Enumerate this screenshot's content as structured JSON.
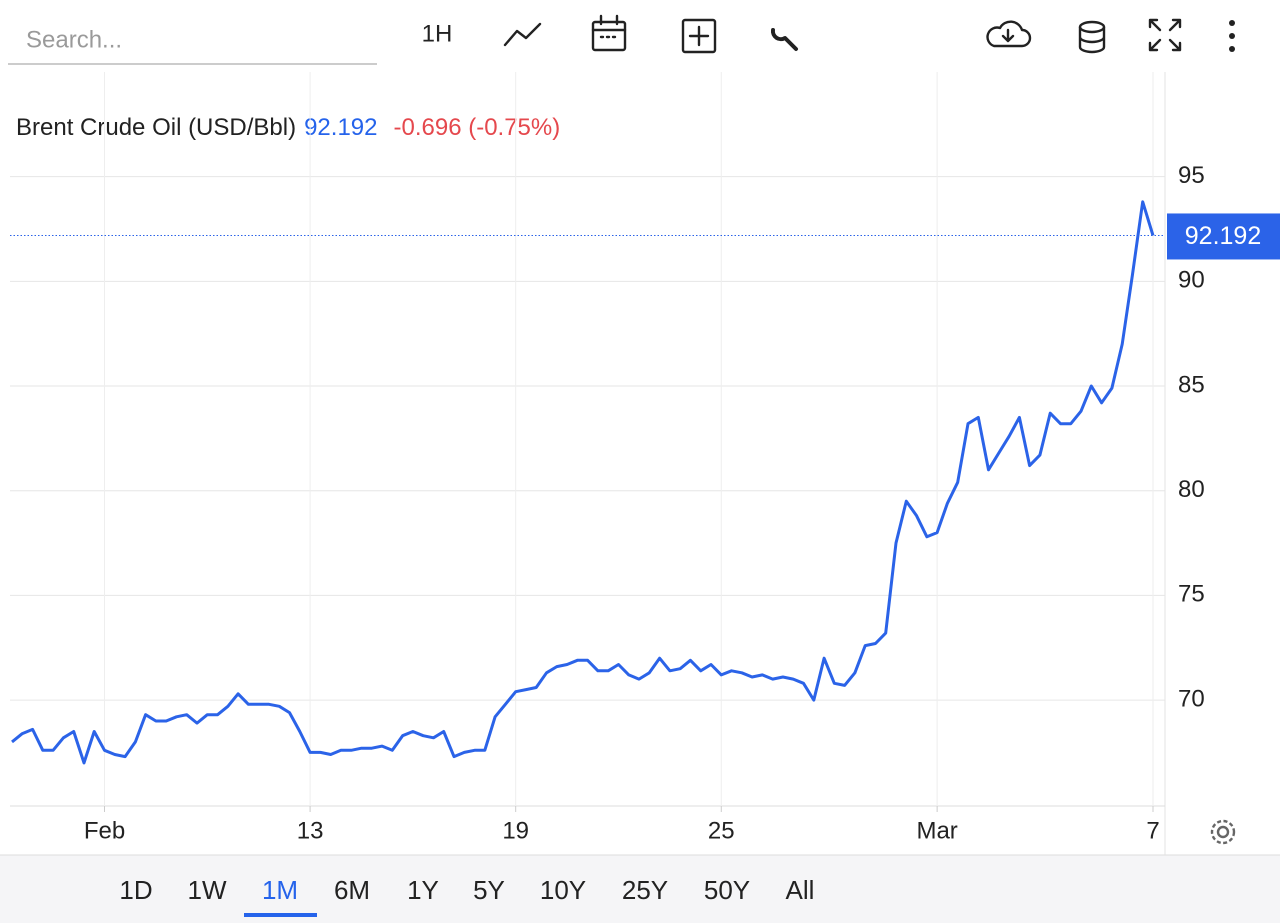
{
  "toolbar": {
    "search_placeholder": "Search...",
    "interval": "1H"
  },
  "chart_data": {
    "type": "line",
    "title": "Brent Crude Oil (USD/Bbl)",
    "price": 92.192,
    "change": "-0.696 (-0.75%)",
    "price_color": "#2563eb",
    "change_color": "#e5484d",
    "categories": [
      null,
      null,
      null,
      null,
      null,
      null,
      null,
      null,
      null,
      "Feb",
      null,
      null,
      null,
      null,
      null,
      null,
      null,
      null,
      null,
      null,
      null,
      null,
      null,
      null,
      null,
      null,
      null,
      null,
      null,
      "13",
      null,
      null,
      null,
      null,
      null,
      null,
      null,
      null,
      null,
      null,
      null,
      null,
      null,
      null,
      null,
      null,
      null,
      null,
      null,
      "19",
      null,
      null,
      null,
      null,
      null,
      null,
      null,
      null,
      null,
      null,
      null,
      null,
      null,
      null,
      null,
      null,
      null,
      null,
      null,
      "25",
      null,
      null,
      null,
      null,
      null,
      null,
      null,
      null,
      null,
      null,
      null,
      null,
      null,
      null,
      null,
      null,
      null,
      null,
      null,
      null,
      "Mar",
      null,
      null,
      null,
      null,
      null,
      null,
      null,
      null,
      null,
      null,
      null,
      null,
      null,
      null,
      null,
      null,
      null,
      null,
      null,
      null,
      "7"
    ],
    "series": [
      {
        "name": "Brent Crude Oil",
        "color": "#2b63e8",
        "values": [
          68.0,
          68.4,
          68.6,
          67.6,
          67.6,
          68.2,
          68.5,
          67.0,
          68.5,
          67.6,
          67.4,
          67.3,
          68.0,
          69.3,
          69.0,
          69.0,
          69.2,
          69.3,
          68.9,
          69.3,
          69.3,
          69.7,
          70.3,
          69.8,
          69.8,
          69.8,
          69.7,
          69.4,
          68.5,
          67.5,
          67.5,
          67.4,
          67.6,
          67.6,
          67.7,
          67.7,
          67.8,
          67.6,
          68.3,
          68.5,
          68.3,
          68.2,
          68.5,
          67.3,
          67.5,
          67.6,
          67.6,
          69.2,
          69.8,
          70.4,
          70.5,
          70.6,
          71.3,
          71.6,
          71.7,
          71.9,
          71.9,
          71.4,
          71.4,
          71.7,
          71.2,
          71.0,
          71.3,
          72.0,
          71.4,
          71.5,
          71.9,
          71.4,
          71.7,
          71.2,
          71.4,
          71.3,
          71.1,
          71.2,
          71.0,
          71.1,
          71.0,
          70.8,
          70.0,
          72.0,
          70.8,
          70.7,
          71.3,
          72.6,
          72.7,
          73.2,
          77.5,
          79.5,
          78.8,
          77.8,
          78.0,
          79.4,
          80.4,
          83.2,
          83.5,
          81.0,
          81.8,
          82.6,
          83.5,
          81.2,
          81.7,
          83.7,
          83.2,
          83.2,
          83.8,
          85.0,
          84.2,
          84.9,
          87.0,
          90.3,
          93.8,
          92.192
        ]
      }
    ],
    "ylim": [
      64.94,
      100
    ],
    "yticks": [
      70,
      75,
      80,
      85,
      90,
      95
    ],
    "grid": true
  },
  "ranges": [
    "1D",
    "1W",
    "1M",
    "6M",
    "1Y",
    "5Y",
    "10Y",
    "25Y",
    "50Y",
    "All"
  ],
  "selected_range": "1M"
}
